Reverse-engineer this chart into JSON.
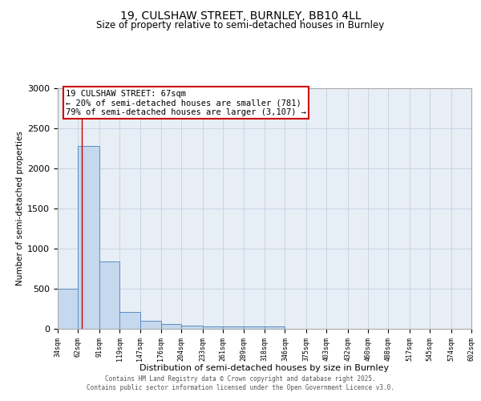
{
  "title_line1": "19, CULSHAW STREET, BURNLEY, BB10 4LL",
  "title_line2": "Size of property relative to semi-detached houses in Burnley",
  "xlabel": "Distribution of semi-detached houses by size in Burnley",
  "ylabel": "Number of semi-detached properties",
  "bin_edges": [
    34,
    62,
    91,
    119,
    147,
    176,
    204,
    233,
    261,
    289,
    318,
    346,
    375,
    403,
    432,
    460,
    488,
    517,
    545,
    574,
    602
  ],
  "bar_heights": [
    500,
    2280,
    840,
    215,
    100,
    65,
    45,
    30,
    28,
    35,
    28,
    0,
    0,
    0,
    0,
    0,
    0,
    0,
    0,
    0
  ],
  "bar_color": "#c5d8ee",
  "bar_edge_color": "#5b8ec4",
  "property_size": 67,
  "annotation_title": "19 CULSHAW STREET: 67sqm",
  "annotation_line2": "← 20% of semi-detached houses are smaller (781)",
  "annotation_line3": "79% of semi-detached houses are larger (3,107) →",
  "annotation_box_color": "#cc0000",
  "vline_color": "#cc0000",
  "ylim": [
    0,
    3000
  ],
  "xlim": [
    34,
    602
  ],
  "grid_color": "#c5d5e5",
  "background_color": "#e8eef5",
  "footer_line1": "Contains HM Land Registry data © Crown copyright and database right 2025.",
  "footer_line2": "Contains public sector information licensed under the Open Government Licence v3.0.",
  "tick_labels": [
    "34sqm",
    "62sqm",
    "91sqm",
    "119sqm",
    "147sqm",
    "176sqm",
    "204sqm",
    "233sqm",
    "261sqm",
    "289sqm",
    "318sqm",
    "346sqm",
    "375sqm",
    "403sqm",
    "432sqm",
    "460sqm",
    "488sqm",
    "517sqm",
    "545sqm",
    "574sqm",
    "602sqm"
  ]
}
